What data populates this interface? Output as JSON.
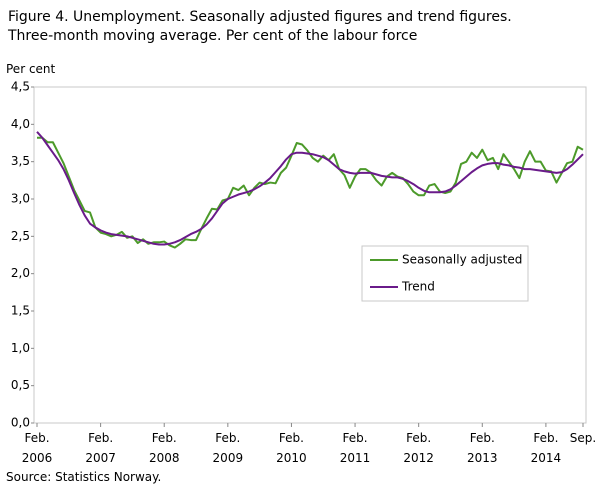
{
  "chart_data": {
    "type": "line",
    "title": "Figure 4. Unemployment. Seasonally adjusted figures and trend figures.",
    "subtitle": "Three-month moving average. Per cent of the labour force",
    "y_label": "Per cent",
    "source": "Source: Statistics Norway.",
    "categories": [
      "Feb. 2006",
      null,
      null,
      null,
      null,
      null,
      null,
      null,
      null,
      null,
      null,
      null,
      "Feb. 2007",
      null,
      null,
      null,
      null,
      null,
      null,
      null,
      null,
      null,
      null,
      null,
      "Feb. 2008",
      null,
      null,
      null,
      null,
      null,
      null,
      null,
      null,
      null,
      null,
      null,
      "Feb. 2009",
      null,
      null,
      null,
      null,
      null,
      null,
      null,
      null,
      null,
      null,
      null,
      "Feb. 2010",
      null,
      null,
      null,
      null,
      null,
      null,
      null,
      null,
      null,
      null,
      null,
      "Feb. 2011",
      null,
      null,
      null,
      null,
      null,
      null,
      null,
      null,
      null,
      null,
      null,
      "Feb. 2012",
      null,
      null,
      null,
      null,
      null,
      null,
      null,
      null,
      null,
      null,
      null,
      "Feb. 2013",
      null,
      null,
      null,
      null,
      null,
      null,
      null,
      null,
      null,
      null,
      null,
      "Feb. 2014",
      null,
      null,
      null,
      null,
      null,
      null,
      "Sep."
    ],
    "series": [
      {
        "name": "Seasonally adjusted",
        "color": "#4c9a2a",
        "values": [
          3.82,
          3.82,
          3.76,
          3.76,
          3.62,
          3.48,
          3.3,
          3.12,
          2.98,
          2.84,
          2.82,
          2.62,
          2.55,
          2.53,
          2.5,
          2.52,
          2.56,
          2.48,
          2.5,
          2.41,
          2.46,
          2.4,
          2.42,
          2.42,
          2.43,
          2.38,
          2.35,
          2.4,
          2.46,
          2.45,
          2.45,
          2.6,
          2.74,
          2.87,
          2.86,
          2.98,
          3.0,
          3.15,
          3.12,
          3.18,
          3.05,
          3.15,
          3.22,
          3.2,
          3.22,
          3.21,
          3.35,
          3.42,
          3.58,
          3.75,
          3.73,
          3.65,
          3.55,
          3.5,
          3.58,
          3.52,
          3.6,
          3.4,
          3.32,
          3.15,
          3.3,
          3.4,
          3.4,
          3.35,
          3.25,
          3.18,
          3.3,
          3.35,
          3.3,
          3.28,
          3.2,
          3.1,
          3.05,
          3.05,
          3.18,
          3.2,
          3.1,
          3.08,
          3.1,
          3.22,
          3.47,
          3.5,
          3.62,
          3.55,
          3.66,
          3.52,
          3.55,
          3.4,
          3.6,
          3.5,
          3.4,
          3.28,
          3.5,
          3.64,
          3.5,
          3.5,
          3.38,
          3.37,
          3.22,
          3.35,
          3.48,
          3.5,
          3.7,
          3.66
        ]
      },
      {
        "name": "Trend",
        "color": "#6a1b8a",
        "values": [
          3.9,
          3.82,
          3.72,
          3.62,
          3.52,
          3.4,
          3.25,
          3.08,
          2.92,
          2.78,
          2.67,
          2.62,
          2.58,
          2.55,
          2.53,
          2.52,
          2.51,
          2.5,
          2.48,
          2.46,
          2.44,
          2.42,
          2.4,
          2.39,
          2.39,
          2.4,
          2.42,
          2.45,
          2.49,
          2.53,
          2.56,
          2.6,
          2.66,
          2.74,
          2.84,
          2.94,
          3.0,
          3.03,
          3.06,
          3.08,
          3.1,
          3.13,
          3.17,
          3.22,
          3.28,
          3.36,
          3.44,
          3.53,
          3.6,
          3.62,
          3.62,
          3.61,
          3.6,
          3.58,
          3.56,
          3.52,
          3.46,
          3.4,
          3.37,
          3.35,
          3.34,
          3.35,
          3.35,
          3.35,
          3.33,
          3.31,
          3.3,
          3.29,
          3.29,
          3.27,
          3.24,
          3.2,
          3.15,
          3.11,
          3.09,
          3.09,
          3.09,
          3.1,
          3.13,
          3.18,
          3.24,
          3.3,
          3.36,
          3.41,
          3.45,
          3.47,
          3.48,
          3.48,
          3.46,
          3.45,
          3.43,
          3.42,
          3.4,
          3.4,
          3.39,
          3.38,
          3.37,
          3.36,
          3.35,
          3.36,
          3.4,
          3.46,
          3.53,
          3.6
        ]
      }
    ],
    "ylim": [
      0,
      4.5
    ],
    "yticks": [
      {
        "value": 0,
        "label": "0,0"
      },
      {
        "value": 0.5,
        "label": "0,5"
      },
      {
        "value": 1,
        "label": "1,0"
      },
      {
        "value": 1.5,
        "label": "1,5"
      },
      {
        "value": 2,
        "label": "2,0"
      },
      {
        "value": 2.5,
        "label": "2,5"
      },
      {
        "value": 3,
        "label": "3,0"
      },
      {
        "value": 3.5,
        "label": "3,5"
      },
      {
        "value": 4,
        "label": "4,0"
      },
      {
        "value": 4.5,
        "label": "4,5"
      }
    ],
    "legend": "center-right"
  }
}
